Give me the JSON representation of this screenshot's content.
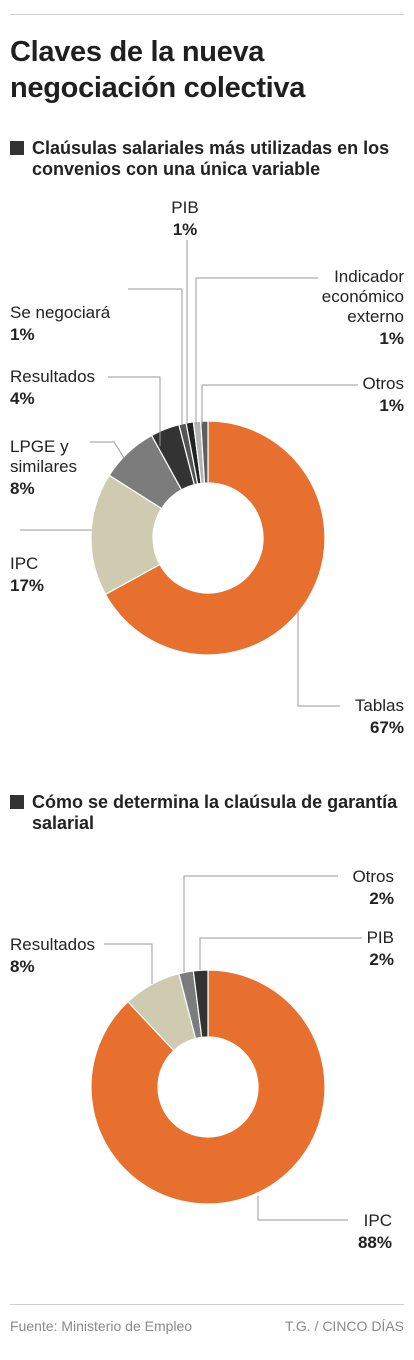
{
  "title": "Claves de la nueva negociación colectiva",
  "colors": {
    "orange": "#e8702e",
    "beige": "#cfcbb1",
    "gray": "#7c7c7c",
    "dark": "#333333",
    "light": "#a9a9a9",
    "mid": "#555555"
  },
  "chart_data": [
    {
      "type": "pie",
      "donut": true,
      "title": "Claúsulas salariales más utilizadas en los convenios con una única variable",
      "slices": [
        {
          "label": "Tablas",
          "value": 67,
          "display": "67%",
          "color": "#e8702e"
        },
        {
          "label": "IPC",
          "value": 17,
          "display": "17%",
          "color": "#cfcbb1"
        },
        {
          "label": "LPGE y similares",
          "value": 8,
          "display": "8%",
          "color": "#7c7c7c"
        },
        {
          "label": "Resultados",
          "value": 4,
          "display": "4%",
          "color": "#333333"
        },
        {
          "label": "Se negociará",
          "value": 1,
          "display": "1%",
          "color": "#555555"
        },
        {
          "label": "PIB",
          "value": 1,
          "display": "1%",
          "color": "#222222"
        },
        {
          "label": "Indicador económico externo",
          "value": 1,
          "display": "1%",
          "color": "#b5b5b5"
        },
        {
          "label": "Otros",
          "value": 1,
          "display": "1%",
          "color": "#5e5e5e"
        }
      ]
    },
    {
      "type": "pie",
      "donut": true,
      "title": "Cómo se determina la claúsula de garantía salarial",
      "slices": [
        {
          "label": "IPC",
          "value": 88,
          "display": "88%",
          "color": "#e8702e"
        },
        {
          "label": "Resultados",
          "value": 8,
          "display": "8%",
          "color": "#cfcbb1"
        },
        {
          "label": "Otros",
          "value": 2,
          "display": "2%",
          "color": "#7c7c7c"
        },
        {
          "label": "PIB",
          "value": 2,
          "display": "2%",
          "color": "#333333"
        }
      ]
    }
  ],
  "footer": {
    "source": "Fuente: Ministerio de Empleo",
    "credit": "T.G. / CINCO DÍAS"
  }
}
